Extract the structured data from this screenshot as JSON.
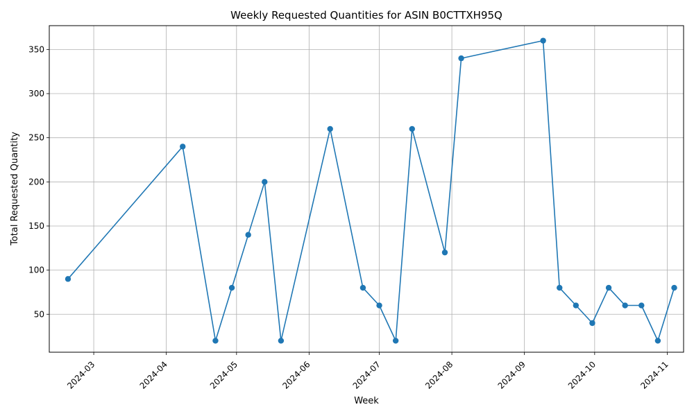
{
  "chart_data": {
    "type": "line",
    "title": "Weekly Requested Quantities for ASIN B0CTTXH95Q",
    "xlabel": "Week",
    "ylabel": "Total Requested Quantity",
    "x_ticks": [
      "2024-03-01",
      "2024-04-01",
      "2024-05-01",
      "2024-06-01",
      "2024-07-01",
      "2024-08-01",
      "2024-09-01",
      "2024-10-01",
      "2024-11-01"
    ],
    "x_tick_labels": [
      "2024-03",
      "2024-04",
      "2024-05",
      "2024-06",
      "2024-07",
      "2024-08",
      "2024-09",
      "2024-10",
      "2024-11"
    ],
    "y_ticks": [
      50,
      100,
      150,
      200,
      250,
      300,
      350
    ],
    "xlim": [
      "2024-02-11",
      "2024-11-08"
    ],
    "ylim": [
      7,
      377
    ],
    "grid": true,
    "color": "#1f77b4",
    "series": [
      {
        "x": [
          "2024-02-19",
          "2024-04-08",
          "2024-04-22",
          "2024-04-29",
          "2024-05-06",
          "2024-05-13",
          "2024-05-20",
          "2024-06-10",
          "2024-06-24",
          "2024-07-01",
          "2024-07-08",
          "2024-07-15",
          "2024-07-29",
          "2024-08-05",
          "2024-09-09",
          "2024-09-16",
          "2024-09-23",
          "2024-09-30",
          "2024-10-07",
          "2024-10-14",
          "2024-10-21",
          "2024-10-28",
          "2024-11-04"
        ],
        "y": [
          90,
          240,
          20,
          80,
          140,
          200,
          20,
          260,
          80,
          60,
          20,
          260,
          120,
          340,
          360,
          80,
          60,
          40,
          80,
          60,
          60,
          20,
          80
        ]
      }
    ]
  }
}
